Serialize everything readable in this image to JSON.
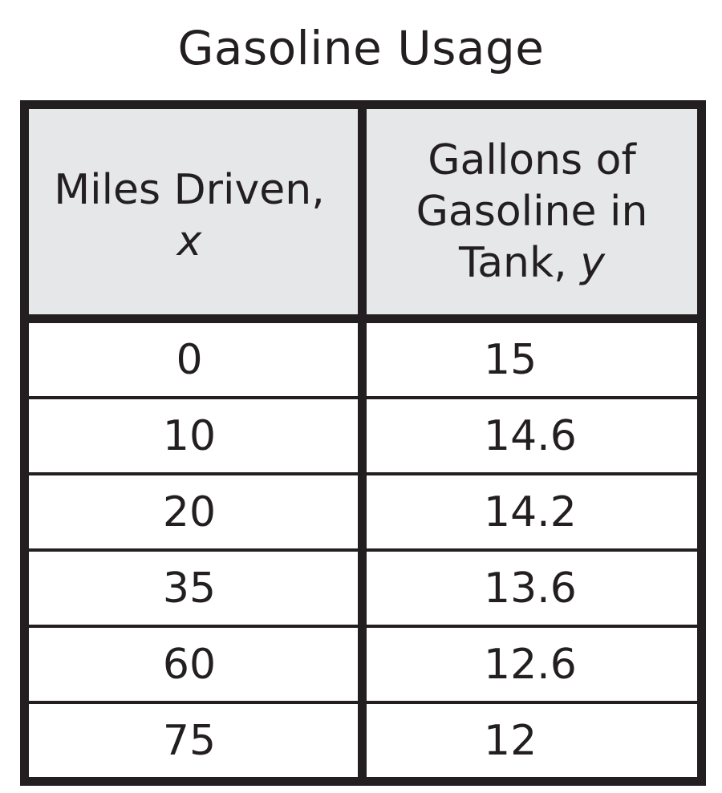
{
  "title": "Gasoline Usage",
  "table": {
    "header": {
      "col1_line1": "Miles Driven,",
      "col1_var": "x",
      "col2_line1": "Gallons of",
      "col2_line2": "Gasoline in",
      "col2_line3_text": "Tank, ",
      "col2_var": "y"
    },
    "rows": [
      {
        "x": "0",
        "y": "15"
      },
      {
        "x": "10",
        "y": "14.6"
      },
      {
        "x": "20",
        "y": "14.2"
      },
      {
        "x": "35",
        "y": "13.6"
      },
      {
        "x": "60",
        "y": "12.6"
      },
      {
        "x": "75",
        "y": "12"
      }
    ]
  },
  "colors": {
    "border": "#231f20",
    "header_bg": "#e6e7e8",
    "text": "#231f20"
  },
  "chart_data": {
    "type": "table",
    "title": "Gasoline Usage",
    "columns": [
      "Miles Driven, x",
      "Gallons of Gasoline in Tank, y"
    ],
    "x": [
      0,
      10,
      20,
      35,
      60,
      75
    ],
    "y": [
      15,
      14.6,
      14.2,
      13.6,
      12.6,
      12
    ]
  }
}
